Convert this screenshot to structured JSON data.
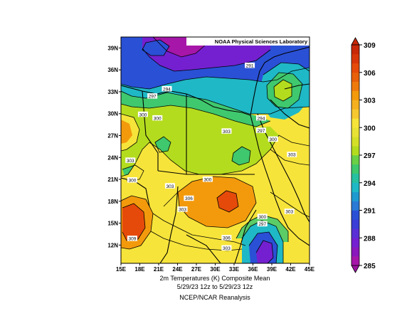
{
  "map": {
    "credit": "NOAA Physical Sciences Laboratory",
    "lat_ticks": [
      "12N",
      "15N",
      "18N",
      "21N",
      "24N",
      "27N",
      "30N",
      "33N",
      "36N",
      "39N"
    ],
    "lon_ticks": [
      "15E",
      "18E",
      "21E",
      "24E",
      "27E",
      "30E",
      "33E",
      "36E",
      "39E",
      "42E",
      "45E"
    ],
    "extent": {
      "lon": [
        15,
        45
      ],
      "lat": [
        9.5,
        40.5
      ]
    },
    "contour_labels": [
      {
        "text": "291",
        "lon": 35.5,
        "lat": 36.5
      },
      {
        "text": "294",
        "lon": 22.3,
        "lat": 33.3
      },
      {
        "text": "297",
        "lon": 20.0,
        "lat": 32.3
      },
      {
        "text": "300",
        "lon": 18.5,
        "lat": 29.8
      },
      {
        "text": "300",
        "lon": 20.8,
        "lat": 29.3
      },
      {
        "text": "294",
        "lon": 37.3,
        "lat": 29.3
      },
      {
        "text": "303",
        "lon": 31.8,
        "lat": 27.5
      },
      {
        "text": "297",
        "lon": 37.3,
        "lat": 27.6
      },
      {
        "text": "300",
        "lon": 39.2,
        "lat": 26.4
      },
      {
        "text": "303",
        "lon": 16.5,
        "lat": 23.5
      },
      {
        "text": "303",
        "lon": 42.2,
        "lat": 24.3
      },
      {
        "text": "300",
        "lon": 28.8,
        "lat": 20.9
      },
      {
        "text": "300",
        "lon": 16.8,
        "lat": 20.8
      },
      {
        "text": "303",
        "lon": 22.8,
        "lat": 20.0
      },
      {
        "text": "306",
        "lon": 25.8,
        "lat": 18.3
      },
      {
        "text": "303",
        "lon": 24.8,
        "lat": 16.8
      },
      {
        "text": "303",
        "lon": 41.8,
        "lat": 16.5
      },
      {
        "text": "300",
        "lon": 37.5,
        "lat": 15.8
      },
      {
        "text": "297",
        "lon": 37.5,
        "lat": 14.8
      },
      {
        "text": "309",
        "lon": 16.8,
        "lat": 12.8
      },
      {
        "text": "306",
        "lon": 31.8,
        "lat": 12.9
      },
      {
        "text": "303",
        "lon": 31.8,
        "lat": 11.5
      }
    ]
  },
  "colorbar": {
    "labels": [
      "309",
      "306",
      "303",
      "300",
      "297",
      "294",
      "291",
      "288",
      "285"
    ],
    "colors": [
      "#e64a0a",
      "#f39a0c",
      "#f7e43a",
      "#b4dc1e",
      "#3fc86e",
      "#1fb8c6",
      "#2a50d6",
      "#7420d0",
      "#a616a8"
    ]
  },
  "caption": {
    "line1": "2m Temperatures (K)   Composite Mean",
    "line2": "5/29/23 12z  to 5/29/23 12z",
    "line3": "NCEP/NCAR Reanalysis"
  }
}
